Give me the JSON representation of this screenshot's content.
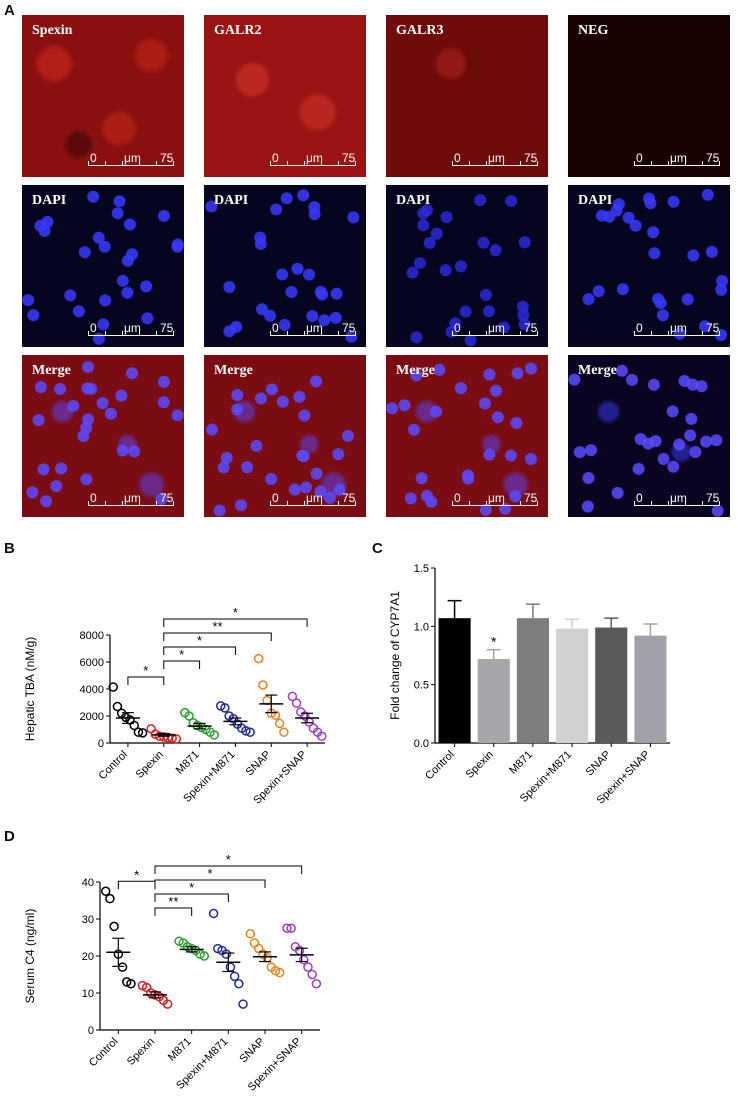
{
  "panels": {
    "A": "A",
    "B": "B",
    "C": "C",
    "D": "D"
  },
  "micrographs": {
    "rows": [
      {
        "labels": [
          "Spexin",
          "GALR2",
          "GALR3",
          "NEG"
        ]
      },
      {
        "labels": [
          "DAPI",
          "DAPI",
          "DAPI",
          "DAPI"
        ]
      },
      {
        "labels": [
          "Merge",
          "Merge",
          "Merge",
          "Merge"
        ]
      }
    ],
    "scale_bar": {
      "start": "0",
      "unit": "μm",
      "end": "75"
    }
  },
  "colors": {
    "Control": "#000000",
    "Spexin": "#e41a1c",
    "M871": "#2ca02c",
    "Spexin+M871": "#1f2a9c",
    "SNAP": "#f07e1e",
    "Spexin+SNAP": "#9b3fc4"
  },
  "chart_data": [
    {
      "panel": "B",
      "type": "scatter",
      "ylabel": "Hepatic TBA (nM/g)",
      "ylim": [
        0,
        8000
      ],
      "yticks": [
        "0",
        "2000",
        "4000",
        "6000",
        "8000"
      ],
      "categories": [
        "Control",
        "Spexin",
        "M871",
        "Spexin+M871",
        "SNAP",
        "Spexin+SNAP"
      ],
      "points": [
        [
          4150,
          2700,
          2200,
          1900,
          1700,
          1300,
          800,
          750
        ],
        [
          1050,
          650,
          500,
          450,
          400,
          350,
          300
        ],
        [
          2250,
          2000,
          1500,
          1300,
          1150,
          1000,
          800,
          600
        ],
        [
          2750,
          2600,
          2000,
          1800,
          1400,
          1100,
          900,
          800
        ],
        [
          6250,
          4300,
          3150,
          2200,
          2050,
          1450,
          800
        ],
        [
          3450,
          2950,
          2300,
          2000,
          1550,
          1100,
          800,
          500
        ]
      ],
      "means": [
        1850,
        600,
        1250,
        1600,
        2900,
        1850
      ],
      "sems": [
        400,
        100,
        200,
        250,
        650,
        350
      ],
      "brackets": [
        {
          "from": 0,
          "to": 1,
          "label": "*"
        },
        {
          "from": 1,
          "to": 2,
          "label": "*"
        },
        {
          "from": 1,
          "to": 3,
          "label": "*"
        },
        {
          "from": 1,
          "to": 4,
          "label": "**"
        },
        {
          "from": 1,
          "to": 5,
          "label": "*"
        }
      ]
    },
    {
      "panel": "C",
      "type": "bar",
      "ylabel": "Fold change of CYP7A1",
      "ylim": [
        0,
        1.5
      ],
      "yticks": [
        "0.0",
        "0.5",
        "1.0",
        "1.5"
      ],
      "categories": [
        "Control",
        "Spexin",
        "M871",
        "Spexin+M871",
        "SNAP",
        "Spexin+SNAP"
      ],
      "values": [
        1.07,
        0.72,
        1.07,
        0.98,
        0.99,
        0.92
      ],
      "errors": [
        0.15,
        0.08,
        0.12,
        0.08,
        0.08,
        0.1
      ],
      "bar_colors": [
        "#000000",
        "#a6a6ab",
        "#7d7d7d",
        "#d0d0d0",
        "#5a5a5a",
        "#a0a0a8"
      ],
      "annotations": [
        {
          "index": 1,
          "label": "*"
        }
      ]
    },
    {
      "panel": "D",
      "type": "scatter",
      "ylabel": "Serum C4 (ng/ml)",
      "ylim": [
        0,
        40
      ],
      "yticks": [
        "0",
        "10",
        "20",
        "30",
        "40"
      ],
      "categories": [
        "Control",
        "Spexin",
        "M871",
        "Spexin+M871",
        "SNAP",
        "Spexin+SNAP"
      ],
      "points": [
        [
          37.5,
          35.5,
          28,
          20.5,
          17,
          13,
          12.5
        ],
        [
          12,
          11.5,
          10,
          9.5,
          9,
          8,
          7
        ],
        [
          24,
          23.5,
          22.5,
          22,
          21.5,
          20.5,
          20
        ],
        [
          31.5,
          22,
          21.5,
          20.5,
          17,
          14.5,
          12.5,
          7
        ],
        [
          26,
          23.5,
          22,
          20.5,
          19.5,
          17,
          16,
          15.5
        ],
        [
          27.5,
          27.5,
          22.5,
          21.5,
          19,
          17,
          15,
          12.5
        ]
      ],
      "means": [
        21,
        9.5,
        21.8,
        18.3,
        19.8,
        20.3
      ],
      "sems": [
        3.8,
        0.8,
        0.7,
        2.5,
        1.3,
        1.8
      ],
      "brackets": [
        {
          "from": 0,
          "to": 1,
          "label": "*"
        },
        {
          "from": 1,
          "to": 2,
          "label": "**"
        },
        {
          "from": 1,
          "to": 3,
          "label": "*"
        },
        {
          "from": 1,
          "to": 4,
          "label": "*"
        },
        {
          "from": 1,
          "to": 5,
          "label": "*"
        }
      ]
    }
  ]
}
